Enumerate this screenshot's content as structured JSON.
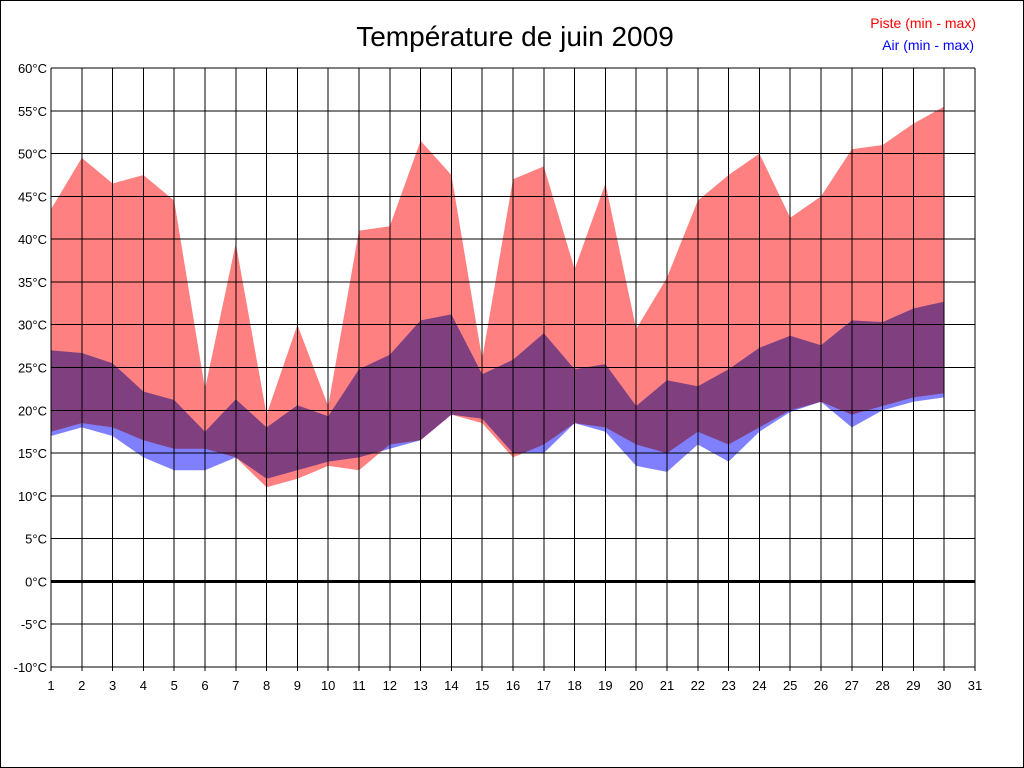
{
  "chart_data": {
    "type": "area",
    "title": "Température de juin 2009",
    "xlabel": "",
    "ylabel": "",
    "xlim": [
      1,
      31
    ],
    "ylim": [
      -10,
      60
    ],
    "y_ticks": [
      60,
      55,
      50,
      45,
      40,
      35,
      30,
      25,
      20,
      15,
      10,
      5,
      0,
      -5,
      -10
    ],
    "y_tick_labels": [
      "60°C",
      "55°C",
      "50°C",
      "45°C",
      "40°C",
      "35°C",
      "30°C",
      "25°C",
      "20°C",
      "15°C",
      "10°C",
      "5°C",
      "0°C",
      "-5°C",
      "-10°C"
    ],
    "x_ticks": [
      1,
      2,
      3,
      4,
      5,
      6,
      7,
      8,
      9,
      10,
      11,
      12,
      13,
      14,
      15,
      16,
      17,
      18,
      19,
      20,
      21,
      22,
      23,
      24,
      25,
      26,
      27,
      28,
      29,
      30,
      31
    ],
    "x_tick_labels": [
      "1",
      "2",
      "3",
      "4",
      "5",
      "6",
      "7",
      "8",
      "9",
      "10",
      "11",
      "12",
      "13",
      "14",
      "15",
      "16",
      "17",
      "18",
      "19",
      "20",
      "21",
      "22",
      "23",
      "24",
      "25",
      "26",
      "27",
      "28",
      "29",
      "30",
      "31"
    ],
    "grid": true,
    "zero_line": true,
    "legend_position": "top-right",
    "series": [
      {
        "name": "Piste (min - max)",
        "color": "#ff0000",
        "fill_color": "#ff8080",
        "x": [
          1,
          2,
          3,
          4,
          5,
          6,
          7,
          8,
          9,
          10,
          11,
          12,
          13,
          14,
          15,
          16,
          17,
          18,
          19,
          20,
          21,
          22,
          23,
          24,
          25,
          26,
          27,
          28,
          29,
          30
        ],
        "min": [
          17.5,
          18.5,
          18,
          16.5,
          15.5,
          15.5,
          14.5,
          11,
          12,
          13.5,
          13,
          16,
          16.5,
          19.5,
          18.5,
          14.5,
          16,
          18.5,
          18,
          16,
          15,
          17.5,
          16,
          18,
          20,
          21,
          19.5,
          20.5,
          21.5,
          22
        ],
        "max": [
          43.5,
          49.5,
          46.5,
          47.5,
          44.5,
          22.5,
          39.5,
          19.5,
          30,
          20.5,
          41,
          41.5,
          51.5,
          47.5,
          26,
          47,
          48.5,
          36.5,
          46.5,
          29.5,
          35.5,
          44.5,
          47.5,
          50,
          42.5,
          45,
          50.5,
          51,
          53.5,
          55.5
        ]
      },
      {
        "name": "Air (min - max)",
        "color": "#0000ff",
        "fill_color": "#8080ff",
        "x": [
          1,
          2,
          3,
          4,
          5,
          6,
          7,
          8,
          9,
          10,
          11,
          12,
          13,
          14,
          15,
          16,
          17,
          18,
          19,
          20,
          21,
          22,
          23,
          24,
          25,
          26,
          27,
          28,
          29,
          30
        ],
        "min": [
          17,
          18,
          17,
          14.5,
          13,
          13,
          14.5,
          12,
          13,
          14,
          14.5,
          15.5,
          16.5,
          19.5,
          19,
          15,
          15,
          18.5,
          17.5,
          13.5,
          12.8,
          16,
          14,
          17.5,
          19.8,
          21,
          18,
          20,
          21,
          21.5
        ],
        "max": [
          27,
          26.7,
          25.5,
          22.2,
          21.2,
          17.5,
          21.3,
          18,
          20.6,
          19.3,
          24.8,
          26.5,
          30.5,
          31.2,
          24.2,
          25.9,
          29,
          24.8,
          25.4,
          20.5,
          23.5,
          22.8,
          24.8,
          27.3,
          28.7,
          27.6,
          30.5,
          30.3,
          31.9,
          32.7
        ]
      }
    ]
  }
}
